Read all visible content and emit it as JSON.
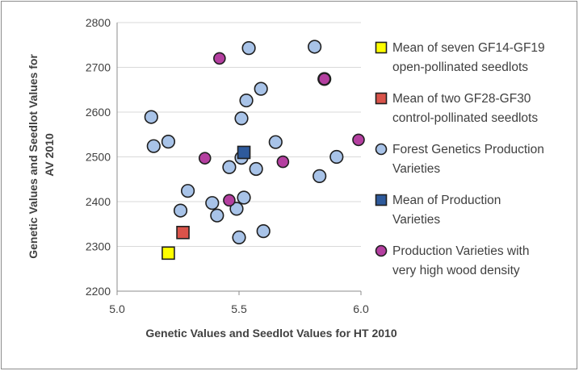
{
  "chart_data": {
    "type": "scatter",
    "title": "",
    "xlabel": "Genetic Values and Seedlot Values for HT 2010",
    "ylabel_lines": [
      "Genetic Values and Seedlot Values for",
      "AV 2010"
    ],
    "xlim": [
      5.0,
      6.0
    ],
    "ylim": [
      2200,
      2800
    ],
    "x_ticks": [
      "5.0",
      "5.5",
      "6.0"
    ],
    "y_ticks": [
      "2200",
      "2300",
      "2400",
      "2500",
      "2600",
      "2700",
      "2800"
    ],
    "grid": "horizontal",
    "legend_position": "right",
    "series": [
      {
        "name": "Mean of seven GF14-GF19 open-pollinated seedlots",
        "legend_lines": [
          "Mean of seven GF14-GF19",
          "open-pollinated seedlots"
        ],
        "marker": "square",
        "color": "#ffff00",
        "points": [
          [
            5.21,
            2285
          ]
        ]
      },
      {
        "name": "Mean of two GF28-GF30 control-pollinated seedlots",
        "legend_lines": [
          "Mean of two GF28-GF30",
          "control-pollinated seedlots"
        ],
        "marker": "square",
        "color": "#d9534a",
        "points": [
          [
            5.27,
            2331
          ]
        ]
      },
      {
        "name": "Forest Genetics Production Varieties",
        "legend_lines": [
          "Forest Genetics Production",
          "Varieties"
        ],
        "marker": "circle",
        "color": "#a8c3e8",
        "points": [
          [
            5.14,
            2589
          ],
          [
            5.15,
            2524
          ],
          [
            5.21,
            2534
          ],
          [
            5.26,
            2380
          ],
          [
            5.29,
            2424
          ],
          [
            5.39,
            2397
          ],
          [
            5.41,
            2369
          ],
          [
            5.46,
            2477
          ],
          [
            5.49,
            2384
          ],
          [
            5.5,
            2320
          ],
          [
            5.51,
            2498
          ],
          [
            5.51,
            2586
          ],
          [
            5.52,
            2409
          ],
          [
            5.53,
            2626
          ],
          [
            5.54,
            2743
          ],
          [
            5.57,
            2473
          ],
          [
            5.59,
            2652
          ],
          [
            5.6,
            2334
          ],
          [
            5.65,
            2533
          ],
          [
            5.81,
            2746
          ],
          [
            5.83,
            2457
          ],
          [
            5.85,
            2674
          ],
          [
            5.9,
            2500
          ]
        ]
      },
      {
        "name": "Mean of Production Varieties",
        "legend_lines": [
          "Mean of Production",
          "Varieties"
        ],
        "marker": "square",
        "color": "#2e5a9c",
        "points": [
          [
            5.52,
            2510
          ]
        ]
      },
      {
        "name": "Production Varieties with very high wood density",
        "legend_lines": [
          "Production Varieties with",
          "very high wood density"
        ],
        "marker": "circle",
        "color": "#b43fa0",
        "points": [
          [
            5.36,
            2497
          ],
          [
            5.42,
            2720
          ],
          [
            5.46,
            2403
          ],
          [
            5.68,
            2489
          ],
          [
            5.85,
            2674
          ],
          [
            5.99,
            2538
          ]
        ]
      }
    ]
  }
}
